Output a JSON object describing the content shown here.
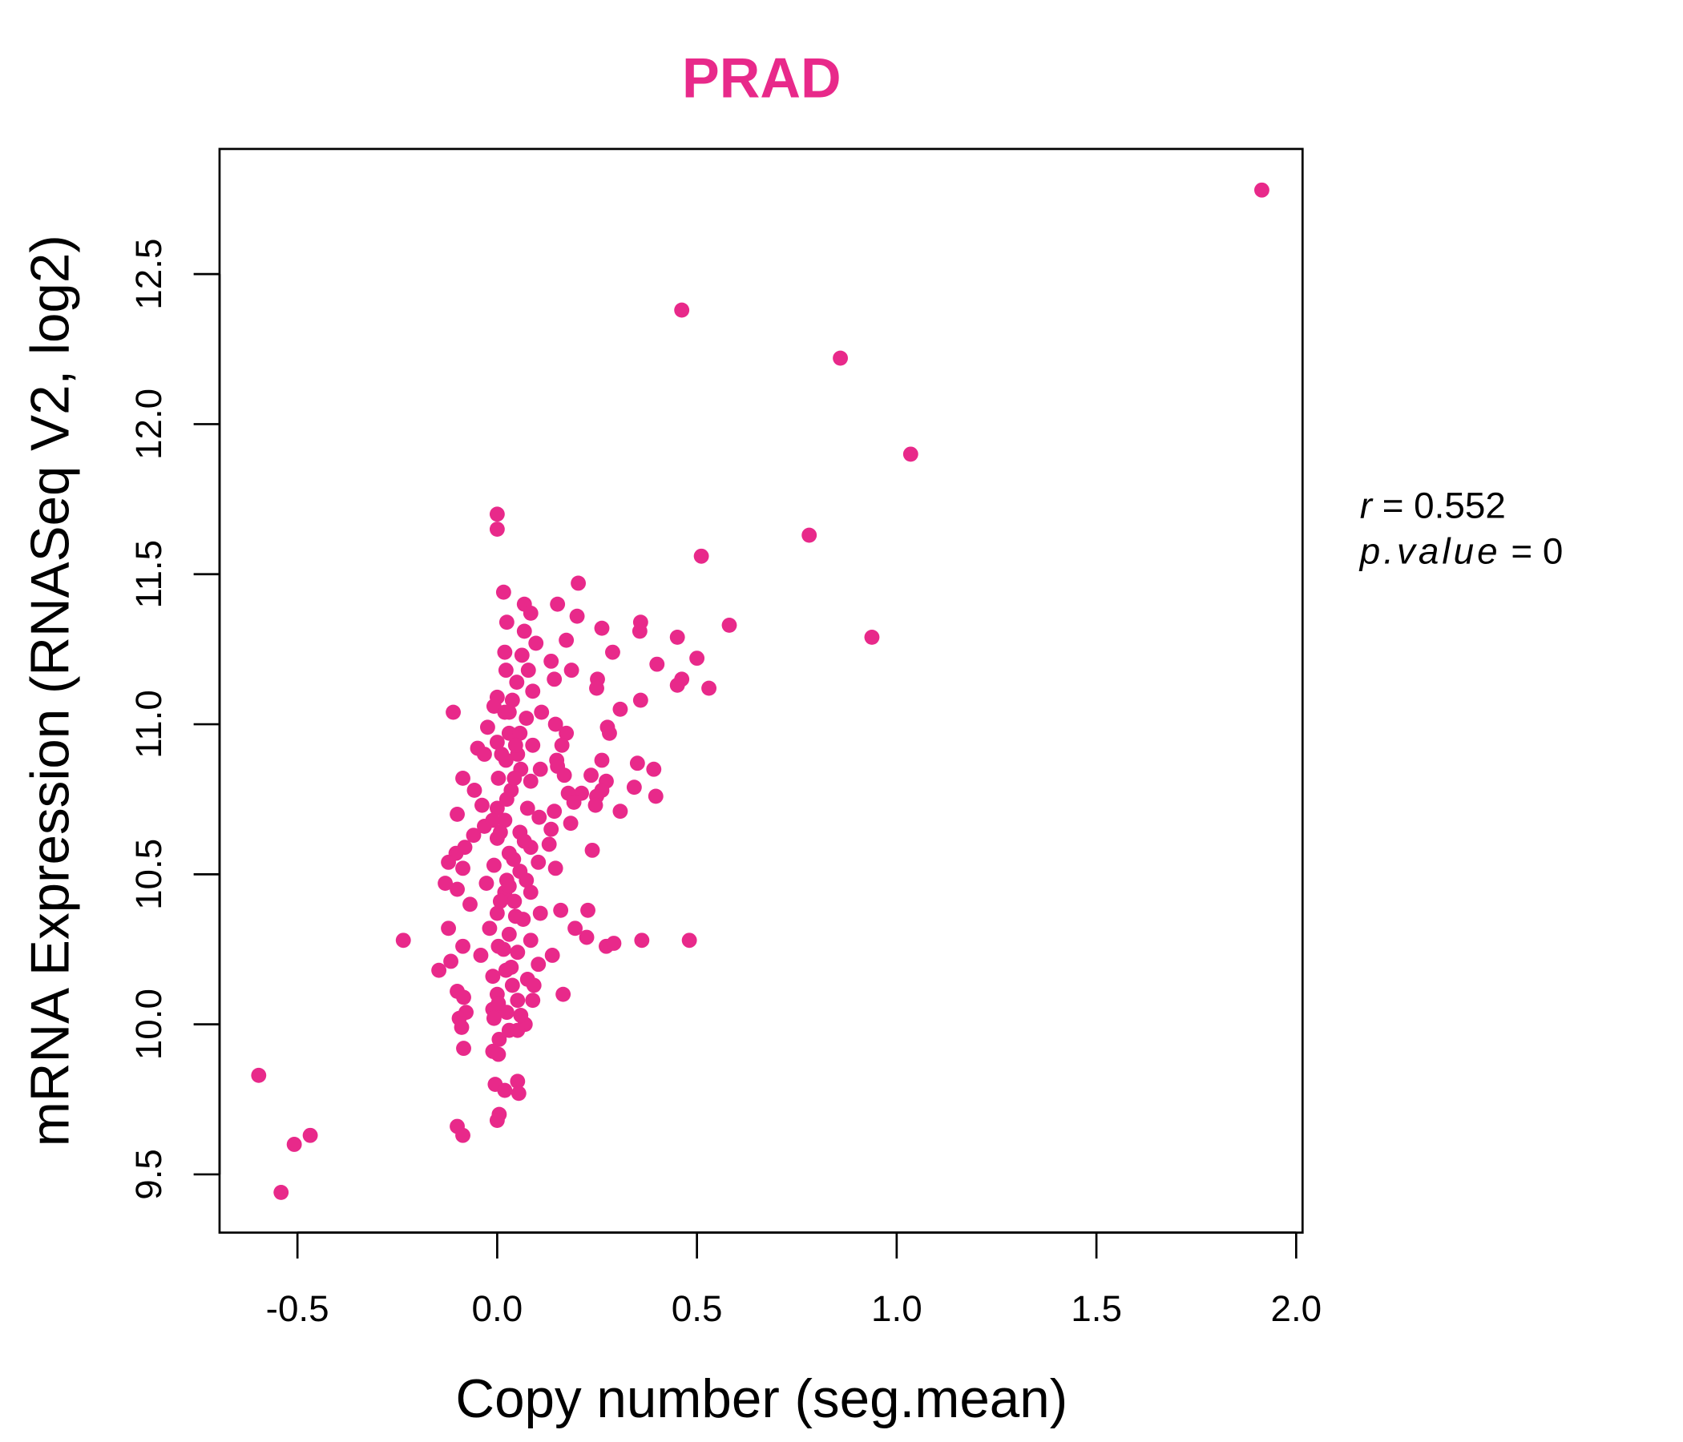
{
  "chart_data": {
    "type": "scatter",
    "title": "PRAD",
    "xlabel": "Copy number (seg.mean)",
    "ylabel": "mRNA Expression (RNASeq V2, log2)",
    "xlim": [
      -0.695,
      2.016
    ],
    "ylim": [
      9.306,
      12.917
    ],
    "xticks": [
      -0.5,
      0.0,
      0.5,
      1.0,
      1.5,
      2.0
    ],
    "xtick_labels": [
      "-0.5",
      "0.0",
      "0.5",
      "1.0",
      "1.5",
      "2.0"
    ],
    "yticks": [
      9.5,
      10.0,
      10.5,
      11.0,
      11.5,
      12.0,
      12.5
    ],
    "ytick_labels": [
      "9.5",
      "10.0",
      "10.5",
      "11.0",
      "11.5",
      "12.0",
      "12.5"
    ],
    "grid": false,
    "color": "#E8298A",
    "annotation": {
      "r_label": "r",
      "r_value": "0.552",
      "p_label": "p.value",
      "p_value": "0",
      "equals": "="
    },
    "points": [
      [
        1.914,
        12.78
      ],
      [
        0.462,
        12.38
      ],
      [
        0.859,
        12.22
      ],
      [
        1.035,
        11.9
      ],
      [
        0.781,
        11.63
      ],
      [
        0.511,
        11.56
      ],
      [
        0.938,
        11.29
      ],
      [
        0.581,
        11.33
      ],
      [
        0.0,
        11.7
      ],
      [
        0.0,
        11.65
      ],
      [
        -0.597,
        9.83
      ],
      [
        -0.508,
        9.6
      ],
      [
        -0.468,
        9.63
      ],
      [
        -0.541,
        9.44
      ],
      [
        -0.235,
        10.28
      ],
      [
        0.481,
        10.28
      ],
      [
        0.362,
        10.28
      ],
      [
        -0.11,
        11.04
      ],
      [
        0.203,
        11.47
      ],
      [
        0.151,
        11.4
      ],
      [
        0.359,
        11.34
      ],
      [
        0.262,
        11.32
      ],
      [
        0.451,
        11.29
      ],
      [
        0.2,
        11.36
      ],
      [
        0.173,
        11.28
      ],
      [
        0.289,
        11.24
      ],
      [
        0.4,
        11.2
      ],
      [
        0.5,
        11.22
      ],
      [
        0.357,
        11.31
      ],
      [
        0.135,
        11.21
      ],
      [
        0.143,
        11.15
      ],
      [
        0.186,
        11.18
      ],
      [
        0.251,
        11.15
      ],
      [
        0.249,
        11.12
      ],
      [
        0.462,
        11.15
      ],
      [
        0.451,
        11.13
      ],
      [
        0.53,
        11.12
      ],
      [
        0.359,
        11.08
      ],
      [
        0.308,
        11.05
      ],
      [
        0.146,
        11.0
      ],
      [
        0.173,
        10.97
      ],
      [
        0.276,
        10.99
      ],
      [
        0.281,
        10.97
      ],
      [
        0.162,
        10.93
      ],
      [
        0.149,
        10.88
      ],
      [
        0.262,
        10.88
      ],
      [
        0.151,
        10.86
      ],
      [
        0.168,
        10.83
      ],
      [
        0.351,
        10.87
      ],
      [
        0.392,
        10.85
      ],
      [
        0.235,
        10.83
      ],
      [
        0.273,
        10.81
      ],
      [
        0.343,
        10.79
      ],
      [
        0.211,
        10.77
      ],
      [
        0.178,
        10.77
      ],
      [
        0.249,
        10.76
      ],
      [
        0.262,
        10.78
      ],
      [
        0.397,
        10.76
      ],
      [
        0.246,
        10.73
      ],
      [
        0.192,
        10.74
      ],
      [
        0.143,
        10.71
      ],
      [
        0.308,
        10.71
      ],
      [
        0.184,
        10.67
      ],
      [
        0.135,
        10.65
      ],
      [
        0.13,
        10.6
      ],
      [
        0.238,
        10.58
      ],
      [
        0.146,
        10.52
      ],
      [
        0.227,
        10.38
      ],
      [
        0.159,
        10.38
      ],
      [
        0.195,
        10.32
      ],
      [
        0.224,
        10.29
      ],
      [
        0.273,
        10.26
      ],
      [
        0.292,
        10.27
      ],
      [
        0.138,
        10.23
      ],
      [
        0.165,
        10.1
      ],
      [
        0.016,
        11.44
      ],
      [
        0.024,
        11.34
      ],
      [
        0.068,
        11.4
      ],
      [
        0.084,
        11.37
      ],
      [
        0.068,
        11.31
      ],
      [
        0.019,
        11.24
      ],
      [
        0.062,
        11.23
      ],
      [
        0.097,
        11.27
      ],
      [
        0.022,
        11.18
      ],
      [
        0.078,
        11.18
      ],
      [
        0.049,
        11.14
      ],
      [
        0.089,
        11.11
      ],
      [
        0.0,
        11.09
      ],
      [
        0.038,
        11.08
      ],
      [
        -0.008,
        11.06
      ],
      [
        0.111,
        11.04
      ],
      [
        0.019,
        11.04
      ],
      [
        0.073,
        11.02
      ],
      [
        -0.024,
        10.99
      ],
      [
        0.03,
        10.97
      ],
      [
        0.057,
        10.97
      ],
      [
        0.0,
        10.94
      ],
      [
        0.089,
        10.93
      ],
      [
        -0.049,
        10.92
      ],
      [
        -0.032,
        10.9
      ],
      [
        0.022,
        10.88
      ],
      [
        0.059,
        10.85
      ],
      [
        0.108,
        10.85
      ],
      [
        0.003,
        10.82
      ],
      [
        -0.086,
        10.82
      ],
      [
        0.084,
        10.81
      ],
      [
        -0.057,
        10.78
      ],
      [
        0.035,
        10.78
      ],
      [
        -0.038,
        10.73
      ],
      [
        0.0,
        10.72
      ],
      [
        0.076,
        10.72
      ],
      [
        -0.1,
        10.7
      ],
      [
        0.105,
        10.69
      ],
      [
        0.019,
        10.68
      ],
      [
        -0.032,
        10.66
      ],
      [
        0.057,
        10.64
      ],
      [
        -0.059,
        10.63
      ],
      [
        0.0,
        10.62
      ],
      [
        -0.081,
        10.59
      ],
      [
        0.084,
        10.59
      ],
      [
        -0.103,
        10.57
      ],
      [
        0.03,
        10.57
      ],
      [
        -0.122,
        10.54
      ],
      [
        -0.008,
        10.53
      ],
      [
        -0.086,
        10.52
      ],
      [
        0.057,
        10.51
      ],
      [
        0.103,
        10.54
      ],
      [
        -0.13,
        10.47
      ],
      [
        -0.027,
        10.47
      ],
      [
        -0.1,
        10.45
      ],
      [
        0.019,
        10.44
      ],
      [
        0.084,
        10.44
      ],
      [
        0.043,
        10.41
      ],
      [
        -0.068,
        10.4
      ],
      [
        0.0,
        10.37
      ],
      [
        0.108,
        10.37
      ],
      [
        0.065,
        10.35
      ],
      [
        -0.019,
        10.32
      ],
      [
        -0.122,
        10.32
      ],
      [
        0.03,
        10.3
      ],
      [
        0.084,
        10.28
      ],
      [
        -0.086,
        10.26
      ],
      [
        0.003,
        10.26
      ],
      [
        0.051,
        10.24
      ],
      [
        -0.041,
        10.23
      ],
      [
        -0.116,
        10.21
      ],
      [
        0.103,
        10.2
      ],
      [
        -0.146,
        10.18
      ],
      [
        0.022,
        10.18
      ],
      [
        -0.011,
        10.16
      ],
      [
        0.076,
        10.15
      ],
      [
        0.038,
        10.13
      ],
      [
        0.092,
        10.13
      ],
      [
        -0.1,
        10.11
      ],
      [
        0.0,
        10.1
      ],
      [
        -0.084,
        10.09
      ],
      [
        0.051,
        10.08
      ],
      [
        0.089,
        10.08
      ],
      [
        -0.011,
        10.05
      ],
      [
        0.024,
        10.04
      ],
      [
        -0.078,
        10.04
      ],
      [
        -0.095,
        10.02
      ],
      [
        -0.008,
        10.02
      ],
      [
        0.07,
        10.0
      ],
      [
        -0.089,
        9.99
      ],
      [
        0.03,
        9.98
      ],
      [
        0.005,
        9.95
      ],
      [
        0.051,
        9.98
      ],
      [
        -0.084,
        9.92
      ],
      [
        -0.011,
        9.91
      ],
      [
        0.003,
        9.9
      ],
      [
        -0.005,
        9.8
      ],
      [
        0.051,
        9.81
      ],
      [
        0.019,
        9.78
      ],
      [
        0.054,
        9.77
      ],
      [
        -0.1,
        9.66
      ],
      [
        0.005,
        9.7
      ],
      [
        0.0,
        9.68
      ],
      [
        -0.086,
        9.63
      ],
      [
        0.011,
        10.9
      ],
      [
        0.043,
        10.82
      ],
      [
        0.024,
        10.75
      ],
      [
        0.008,
        10.64
      ],
      [
        0.041,
        10.55
      ],
      [
        0.024,
        10.48
      ],
      [
        0.008,
        10.41
      ],
      [
        0.046,
        10.36
      ],
      [
        0.016,
        10.25
      ],
      [
        0.035,
        10.19
      ],
      [
        0.003,
        10.07
      ],
      [
        0.059,
        10.03
      ],
      [
        -0.011,
        10.68
      ],
      [
        0.068,
        10.61
      ],
      [
        0.03,
        10.46
      ],
      [
        0.073,
        10.48
      ],
      [
        0.051,
        10.9
      ],
      [
        0.03,
        11.04
      ],
      [
        0.046,
        10.93
      ]
    ]
  }
}
